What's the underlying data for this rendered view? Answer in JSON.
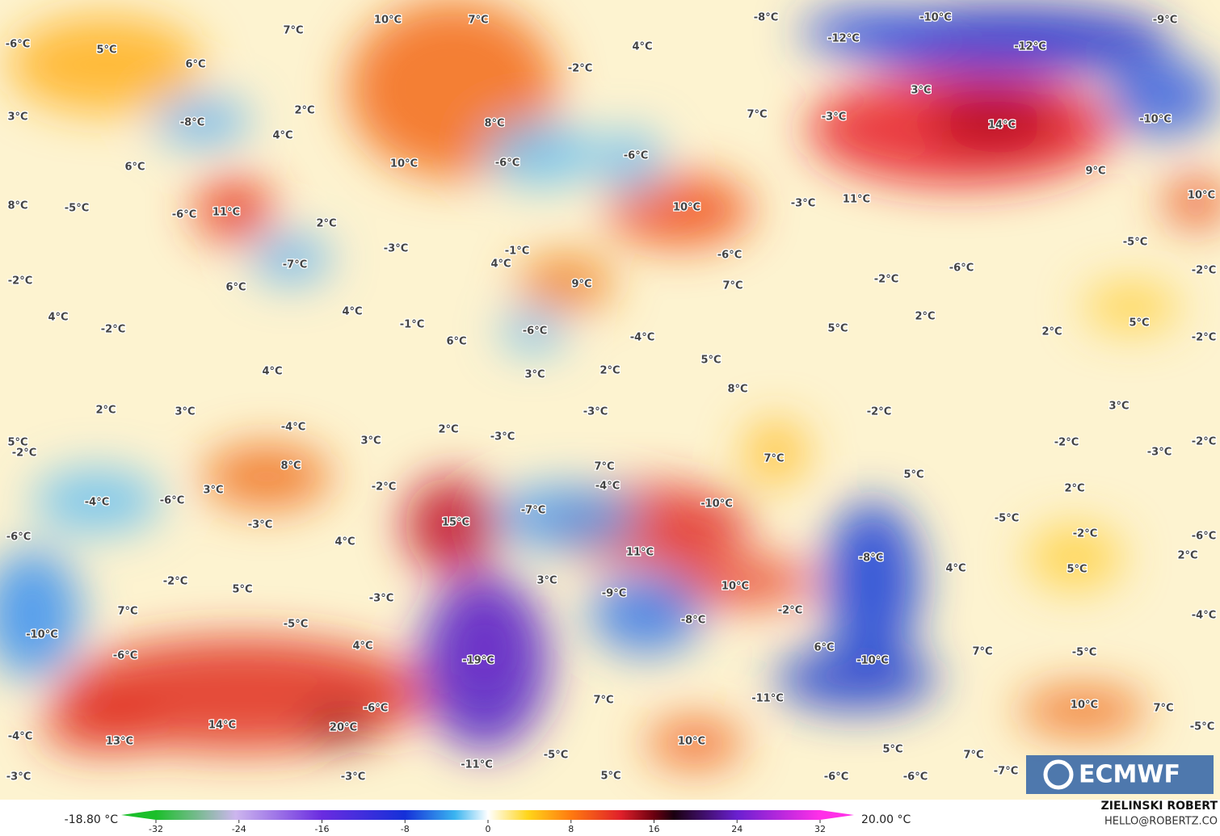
{
  "map": {
    "labels": [
      "-6°C",
      "5°C",
      "7°C",
      "10°C",
      "7°C",
      "-8°C",
      "-10°C",
      "-9°C",
      "6°C",
      "-12°C",
      "-12°C",
      "4°C",
      "-2°C",
      "3°C",
      "3°C",
      "-8°C",
      "2°C",
      "4°C",
      "8°C",
      "7°C",
      "-3°C",
      "14°C",
      "-10°C",
      "6°C",
      "10°C",
      "-6°C",
      "-6°C",
      "9°C",
      "8°C",
      "-5°C",
      "-6°C",
      "11°C",
      "2°C",
      "-3°C",
      "11°C",
      "10°C",
      "10°C",
      "-3°C",
      "-1°C",
      "4°C",
      "-7°C",
      "-6°C",
      "-5°C",
      "-6°C",
      "-2°C",
      "-2°C",
      "6°C",
      "9°C",
      "7°C",
      "-2°C",
      "4°C",
      "-2°C",
      "4°C",
      "-1°C",
      "6°C",
      "-6°C",
      "-4°C",
      "5°C",
      "2°C",
      "5°C",
      "-2°C",
      "2°C",
      "5°C",
      "3°C",
      "2°C",
      "4°C",
      "2°C",
      "3°C",
      "-3°C",
      "8°C",
      "-2°C",
      "3°C",
      "-4°C",
      "2°C",
      "-3°C",
      "3°C",
      "5°C",
      "-2°C",
      "-2°C",
      "-2°C",
      "-3°C",
      "8°C",
      "7°C",
      "7°C",
      "5°C",
      "3°C",
      "-2°C",
      "-4°C",
      "2°C",
      "-4°C",
      "-6°C",
      "15°C",
      "-7°C",
      "-10°C",
      "-5°C",
      "-3°C",
      "-6°C",
      "4°C",
      "-2°C",
      "-6°C",
      "11°C",
      "-8°C",
      "2°C",
      "-2°C",
      "3°C",
      "10°C",
      "4°C",
      "5°C",
      "5°C",
      "-3°C",
      "-9°C",
      "7°C",
      "-2°C",
      "-8°C",
      "-4°C",
      "-5°C",
      "-10°C",
      "4°C",
      "6°C",
      "7°C",
      "-5°C",
      "-6°C",
      "-19°C",
      "-10°C",
      "-11°C",
      "7°C",
      "-6°C",
      "10°C",
      "7°C",
      "14°C",
      "20°C",
      "-5°C",
      "-4°C",
      "13°C",
      "10°C",
      "5°C",
      "7°C",
      "-11°C",
      "-5°C",
      "-7°C",
      "-3°C",
      "-3°C",
      "5°C",
      "-6°C",
      "-6°C"
    ]
  },
  "legend": {
    "min_label": "-18.80 °C",
    "max_label": "20.00 °C",
    "ticks": [
      -32,
      -24,
      -16,
      -8,
      0,
      8,
      16,
      24,
      32
    ]
  },
  "credit": {
    "author": "ZIELINSKI ROBERT",
    "contact": "HELLO@ROBERTZ.CO"
  },
  "logo": "ECMWF"
}
